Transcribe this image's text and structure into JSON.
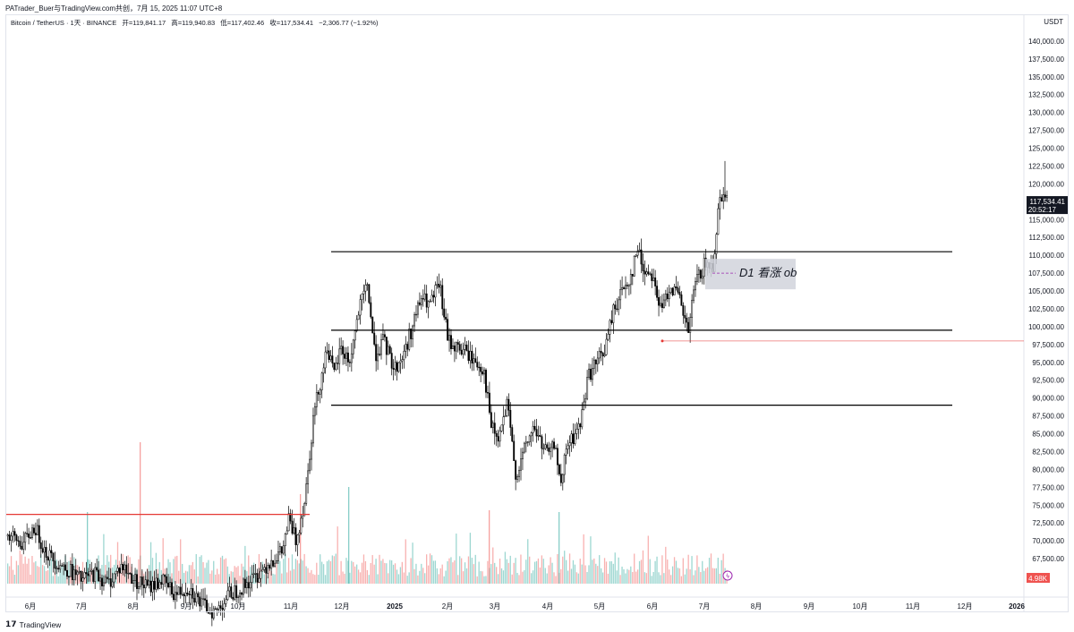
{
  "share_line": "PATrader_Buer与TradingView.com共创，7月 15, 2025 11:07 UTC+8",
  "header": {
    "symbol": "Bitcoin / TetherUS · 1天 · BINANCE",
    "open": "开=119,841.17",
    "high": "高=119,940.83",
    "low": "低=117,402.46",
    "close": "收=117,534.41",
    "change": "−2,306.77 (−1.92%)"
  },
  "quote_currency": "USDT",
  "brand": "TradingView",
  "colors": {
    "up": "#26a69a",
    "down": "#ef5350",
    "candle": "#000000",
    "resistance": "#000000",
    "red_line": "#e53935"
  },
  "chart_data": {
    "type": "candlestick",
    "y_tick_labels": [
      "67,500.00",
      "70,000.00",
      "72,500.00",
      "75,000.00",
      "77,500.00",
      "80,000.00",
      "82,500.00",
      "85,000.00",
      "87,500.00",
      "90,000.00",
      "92,500.00",
      "95,000.00",
      "97,500.00",
      "100,000.00",
      "102,500.00",
      "105,000.00",
      "107,500.00",
      "110,000.00",
      "112,500.00",
      "115,000.00",
      "117,500.00",
      "120,000.00",
      "122,500.00",
      "125,000.00",
      "127,500.00",
      "130,000.00",
      "132,500.00",
      "135,000.00",
      "137,500.00",
      "140,000.00"
    ],
    "y_ticks": [
      67500,
      70000,
      72500,
      75000,
      77500,
      80000,
      82500,
      85000,
      87500,
      90000,
      92500,
      95000,
      97500,
      100000,
      102500,
      105000,
      107500,
      110000,
      112500,
      115000,
      117500,
      120000,
      122500,
      125000,
      127500,
      130000,
      132500,
      135000,
      137500,
      140000
    ],
    "ylim": [
      64000,
      143000
    ],
    "x_tick_labels": [
      "6月",
      "7月",
      "8月",
      "9月",
      "10月",
      "11月",
      "12月",
      "2025",
      "2月",
      "3月",
      "4月",
      "5月",
      "6月",
      "7月",
      "8月",
      "9月",
      "10月",
      "11月",
      "12月",
      "2026"
    ],
    "last_price_label": "117,534.41",
    "countdown_label": "20:52:17",
    "volume_label": "4.98K",
    "horizontal_levels": [
      110500,
      99500,
      89000
    ],
    "red_level_left": 73700,
    "red_level_right": 98000,
    "annotation": "D1 看涨 ob",
    "price_path": [
      [
        0,
        71000
      ],
      [
        12,
        70500
      ],
      [
        25,
        69500
      ],
      [
        38,
        72000
      ],
      [
        50,
        68500
      ],
      [
        62,
        67000
      ],
      [
        75,
        66000
      ],
      [
        90,
        64500
      ],
      [
        105,
        65500
      ],
      [
        120,
        64000
      ],
      [
        135,
        66500
      ],
      [
        150,
        64500
      ],
      [
        165,
        63500
      ],
      [
        180,
        64500
      ],
      [
        195,
        62500
      ],
      [
        210,
        63500
      ],
      [
        225,
        61000
      ],
      [
        240,
        60000
      ],
      [
        255,
        62500
      ],
      [
        270,
        63500
      ],
      [
        285,
        65000
      ],
      [
        300,
        67000
      ],
      [
        315,
        68500
      ],
      [
        322,
        73000
      ],
      [
        330,
        70000
      ],
      [
        340,
        76000
      ],
      [
        350,
        88000
      ],
      [
        360,
        94000
      ],
      [
        365,
        97500
      ],
      [
        372,
        93000
      ],
      [
        380,
        97000
      ],
      [
        390,
        95000
      ],
      [
        400,
        102000
      ],
      [
        410,
        106000
      ],
      [
        418,
        96000
      ],
      [
        428,
        98000
      ],
      [
        440,
        94000
      ],
      [
        450,
        96000
      ],
      [
        460,
        100000
      ],
      [
        470,
        104000
      ],
      [
        480,
        103000
      ],
      [
        490,
        106000
      ],
      [
        500,
        98000
      ],
      [
        510,
        97000
      ],
      [
        520,
        96500
      ],
      [
        530,
        95000
      ],
      [
        540,
        94000
      ],
      [
        548,
        86000
      ],
      [
        556,
        84000
      ],
      [
        566,
        89000
      ],
      [
        576,
        79000
      ],
      [
        586,
        83000
      ],
      [
        596,
        86000
      ],
      [
        606,
        83000
      ],
      [
        614,
        82000
      ],
      [
        620,
        84000
      ],
      [
        626,
        77000
      ],
      [
        632,
        83000
      ],
      [
        640,
        84500
      ],
      [
        648,
        86500
      ],
      [
        656,
        93000
      ],
      [
        666,
        95000
      ],
      [
        676,
        97000
      ],
      [
        684,
        102000
      ],
      [
        694,
        105000
      ],
      [
        704,
        107000
      ],
      [
        712,
        111000
      ],
      [
        718,
        108000
      ],
      [
        728,
        107500
      ],
      [
        738,
        102000
      ],
      [
        748,
        106000
      ],
      [
        758,
        104000
      ],
      [
        768,
        99000
      ],
      [
        776,
        106000
      ],
      [
        786,
        108500
      ],
      [
        796,
        108500
      ],
      [
        802,
        117000
      ],
      [
        808,
        119500
      ],
      [
        812,
        117500
      ]
    ]
  }
}
